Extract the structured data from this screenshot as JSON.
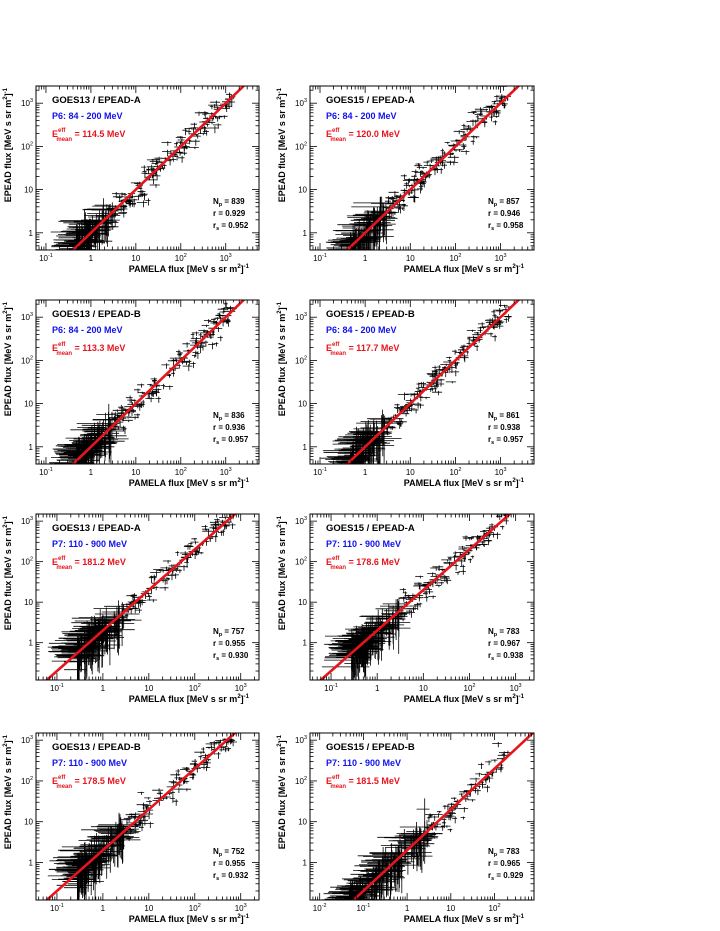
{
  "xlabel": "PAMELA flux [MeV s sr m",
  "ylabel": "EPEAD flux [MeV s sr m",
  "unit_exp_sq": "2",
  "unit_exp_inv": "-1",
  "colors": {
    "frame": "#000000",
    "points": "#000000",
    "fit": "#e8141c",
    "band": "#1111ee",
    "emean": "#e8141c",
    "background": "#ffffff"
  },
  "chart_data": [
    {
      "type": "scatter",
      "title": "GOES13 / EPEAD-A",
      "band": "P6: 84 - 200 MeV",
      "emean_value": "= 114.5 MeV",
      "np": "= 839",
      "r": "r = 0.929",
      "rs": "= 0.952",
      "xlog": true,
      "ylog": true,
      "xlim": [
        0.06,
        5500
      ],
      "ylim": [
        0.4,
        2500
      ],
      "xticks": [
        0.1,
        1,
        10,
        100,
        1000
      ],
      "xtick_labels": [
        "10^-1",
        "1",
        "10",
        "10^2",
        "10^3"
      ],
      "yticks": [
        1,
        10,
        100,
        1000
      ],
      "ytick_labels": [
        "1",
        "10",
        "10^2",
        "10^3"
      ],
      "fit": {
        "slope": 1,
        "intercept": 1.0
      }
    },
    {
      "type": "scatter",
      "title": "GOES15 / EPEAD-A",
      "band": "P6: 84 - 200 MeV",
      "emean_value": "= 120.0 MeV",
      "np": "= 857",
      "r": "r = 0.946",
      "rs": "= 0.958",
      "xlog": true,
      "ylog": true,
      "xlim": [
        0.06,
        5500
      ],
      "ylim": [
        0.4,
        2500
      ],
      "xticks": [
        0.1,
        1,
        10,
        100,
        1000
      ],
      "xtick_labels": [
        "10^-1",
        "1",
        "10",
        "10^2",
        "10^3"
      ],
      "yticks": [
        1,
        10,
        100,
        1000
      ],
      "ytick_labels": [
        "1",
        "10",
        "10^2",
        "10^3"
      ],
      "fit": {
        "slope": 1,
        "intercept": 1.0
      }
    },
    {
      "type": "scatter",
      "title": "GOES13 / EPEAD-B",
      "band": "P6: 84 - 200 MeV",
      "emean_value": "= 113.3 MeV",
      "np": "= 836",
      "r": "r = 0.936",
      "rs": "= 0.957",
      "xlog": true,
      "ylog": true,
      "xlim": [
        0.06,
        5500
      ],
      "ylim": [
        0.4,
        2500
      ],
      "xticks": [
        0.1,
        1,
        10,
        100,
        1000
      ],
      "xtick_labels": [
        "10^-1",
        "1",
        "10",
        "10^2",
        "10^3"
      ],
      "yticks": [
        1,
        10,
        100,
        1000
      ],
      "ytick_labels": [
        "1",
        "10",
        "10^2",
        "10^3"
      ],
      "fit": {
        "slope": 1,
        "intercept": 1.0
      }
    },
    {
      "type": "scatter",
      "title": "GOES15 / EPEAD-B",
      "band": "P6: 84 - 200 MeV",
      "emean_value": "= 117.7 MeV",
      "np": "= 861",
      "r": "r = 0.938",
      "rs": "= 0.957",
      "xlog": true,
      "ylog": true,
      "xlim": [
        0.06,
        5500
      ],
      "ylim": [
        0.4,
        2500
      ],
      "xticks": [
        0.1,
        1,
        10,
        100,
        1000
      ],
      "xtick_labels": [
        "10^-1",
        "1",
        "10",
        "10^2",
        "10^3"
      ],
      "yticks": [
        1,
        10,
        100,
        1000
      ],
      "ytick_labels": [
        "1",
        "10",
        "10^2",
        "10^3"
      ],
      "fit": {
        "slope": 1,
        "intercept": 1.0
      }
    },
    {
      "type": "scatter",
      "title": "GOES13 / EPEAD-A",
      "band": "P7: 110 - 900 MeV",
      "emean_value": "= 181.2 MeV",
      "np": "= 757",
      "r": "r = 0.955",
      "rs": "= 0.930",
      "xlog": true,
      "ylog": true,
      "xlim": [
        0.035,
        2500
      ],
      "ylim": [
        0.12,
        1500
      ],
      "xticks": [
        0.1,
        1,
        10,
        100,
        1000
      ],
      "xtick_labels": [
        "10^-1",
        "1",
        "10",
        "10^2",
        "10^3"
      ],
      "yticks": [
        1,
        10,
        100,
        1000
      ],
      "ytick_labels": [
        "1",
        "10",
        "10^2",
        "10^3"
      ],
      "fit": {
        "slope": 1,
        "intercept": 2.0
      }
    },
    {
      "type": "scatter",
      "title": "GOES15 / EPEAD-A",
      "band": "P7: 110 - 900 MeV",
      "emean_value": "= 178.6 MeV",
      "np": "= 783",
      "r": "r = 0.967",
      "rs": "= 0.938",
      "xlog": true,
      "ylog": true,
      "xlim": [
        0.035,
        2500
      ],
      "ylim": [
        0.12,
        1500
      ],
      "xticks": [
        0.1,
        1,
        10,
        100,
        1000
      ],
      "xtick_labels": [
        "10^-1",
        "1",
        "10",
        "10^2",
        "10^3"
      ],
      "yticks": [
        1,
        10,
        100,
        1000
      ],
      "ytick_labels": [
        "1",
        "10",
        "10^2",
        "10^3"
      ],
      "fit": {
        "slope": 1,
        "intercept": 2.0
      }
    },
    {
      "type": "scatter",
      "title": "GOES13 / EPEAD-B",
      "band": "P7: 110 - 900 MeV",
      "emean_value": "= 178.5 MeV",
      "np": "= 752",
      "r": "r = 0.955",
      "rs": "= 0.932",
      "xlog": true,
      "ylog": true,
      "xlim": [
        0.035,
        2500
      ],
      "ylim": [
        0.12,
        1500
      ],
      "xticks": [
        0.1,
        1,
        10,
        100,
        1000
      ],
      "xtick_labels": [
        "10^-1",
        "1",
        "10",
        "10^2",
        "10^3"
      ],
      "yticks": [
        1,
        10,
        100,
        1000
      ],
      "ytick_labels": [
        "1",
        "10",
        "10^2",
        "10^3"
      ],
      "fit": {
        "slope": 1,
        "intercept": 2.0
      }
    },
    {
      "type": "scatter",
      "title": "GOES15 / EPEAD-B",
      "band": "P7: 110 - 900 MeV",
      "emean_value": "= 181.5 MeV",
      "np": "= 783",
      "r": "r = 0.965",
      "rs": "= 0.929",
      "xlog": true,
      "ylog": true,
      "xlim": [
        0.006,
        800
      ],
      "ylim": [
        0.12,
        1500
      ],
      "xticks": [
        0.01,
        0.1,
        1,
        10,
        100
      ],
      "xtick_labels": [
        "10^-2",
        "10^-1",
        "1",
        "10",
        "10^2"
      ],
      "yticks": [
        1,
        10,
        100,
        1000
      ],
      "ytick_labels": [
        "1",
        "10",
        "10^2",
        "10^3"
      ],
      "fit": {
        "slope": 1,
        "intercept": 2.0
      }
    }
  ]
}
